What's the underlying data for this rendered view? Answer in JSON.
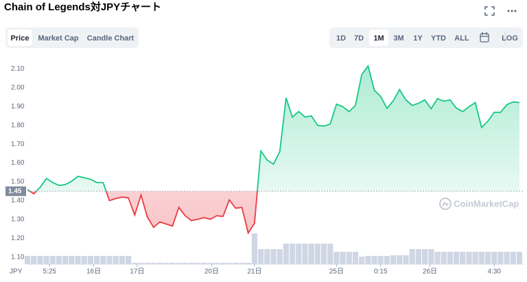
{
  "chart_data": {
    "type": "line",
    "title": "Chain of Legends対JPYチャート",
    "tabs": [
      "Price",
      "Market Cap",
      "Candle Chart"
    ],
    "active_tab": "Price",
    "ranges": [
      "1D",
      "7D",
      "1M",
      "3M",
      "1Y",
      "YTD",
      "ALL"
    ],
    "active_range": "1M",
    "log_label": "LOG",
    "currency_label": "JPY",
    "watermark": "CoinMarketCap",
    "baseline": 1.45,
    "up_color": "#16c784",
    "down_color": "#ea3943",
    "volume_color": "#cfd6e4",
    "grid": false,
    "ylim": [
      1.07,
      2.145
    ],
    "yticks": [
      {
        "value": 1.1,
        "label": "1.10"
      },
      {
        "value": 1.2,
        "label": "1.20"
      },
      {
        "value": 1.3,
        "label": "1.30"
      },
      {
        "value": 1.4,
        "label": "1.40"
      },
      {
        "value": 1.5,
        "label": "1.50"
      },
      {
        "value": 1.6,
        "label": "1.60"
      },
      {
        "value": 1.7,
        "label": "1.70"
      },
      {
        "value": 1.8,
        "label": "1.80"
      },
      {
        "value": 1.9,
        "label": "1.90"
      },
      {
        "value": 2.0,
        "label": "2.00"
      },
      {
        "value": 2.1,
        "label": "2.10"
      }
    ],
    "xlim": [
      0,
      78
    ],
    "xticks": [
      {
        "value": 3.5,
        "label": "5:25"
      },
      {
        "value": 10.5,
        "label": "16日"
      },
      {
        "value": 17.4,
        "label": "17日"
      },
      {
        "value": 29.2,
        "label": "20日"
      },
      {
        "value": 36,
        "label": "21日"
      },
      {
        "value": 49,
        "label": "25日"
      },
      {
        "value": 56,
        "label": "0:15"
      },
      {
        "value": 63.8,
        "label": "26日"
      },
      {
        "value": 74,
        "label": "4:30"
      }
    ],
    "values": [
      1.459,
      1.437,
      1.47,
      1.518,
      1.496,
      1.481,
      1.485,
      1.503,
      1.529,
      1.522,
      1.514,
      1.496,
      1.496,
      1.4,
      1.411,
      1.419,
      1.415,
      1.324,
      1.43,
      1.313,
      1.258,
      1.287,
      1.276,
      1.265,
      1.364,
      1.32,
      1.294,
      1.301,
      1.31,
      1.301,
      1.32,
      1.316,
      1.404,
      1.36,
      1.364,
      1.228,
      1.28,
      1.664,
      1.616,
      1.594,
      1.66,
      1.946,
      1.844,
      1.873,
      1.844,
      1.851,
      1.8,
      1.796,
      1.807,
      1.913,
      1.899,
      1.873,
      1.906,
      2.07,
      2.115,
      1.986,
      1.953,
      1.89,
      1.931,
      1.99,
      1.935,
      1.906,
      1.917,
      1.935,
      1.888,
      1.942,
      1.928,
      1.935,
      1.891,
      1.873,
      1.899,
      1.921,
      1.789,
      1.822,
      1.869,
      1.869,
      1.91,
      1.924,
      1.921
    ],
    "vlim": [
      0,
      50
    ],
    "volume": [
      12,
      12,
      12,
      12,
      12,
      12,
      12,
      12,
      12,
      12,
      12,
      12,
      12,
      12,
      12,
      12,
      12,
      2,
      2,
      2,
      2,
      2,
      2,
      2,
      2,
      2,
      2,
      2,
      2,
      2,
      2,
      2,
      2,
      2,
      2,
      2,
      45,
      22,
      22,
      22,
      22,
      30,
      30,
      30,
      30,
      30,
      30,
      30,
      30,
      18,
      18,
      18,
      18,
      11,
      12,
      12,
      12,
      12,
      13,
      13,
      13,
      22,
      22,
      22,
      22,
      18,
      18,
      18,
      18,
      18,
      18,
      18,
      18,
      18,
      18,
      18,
      18,
      18,
      18
    ]
  }
}
